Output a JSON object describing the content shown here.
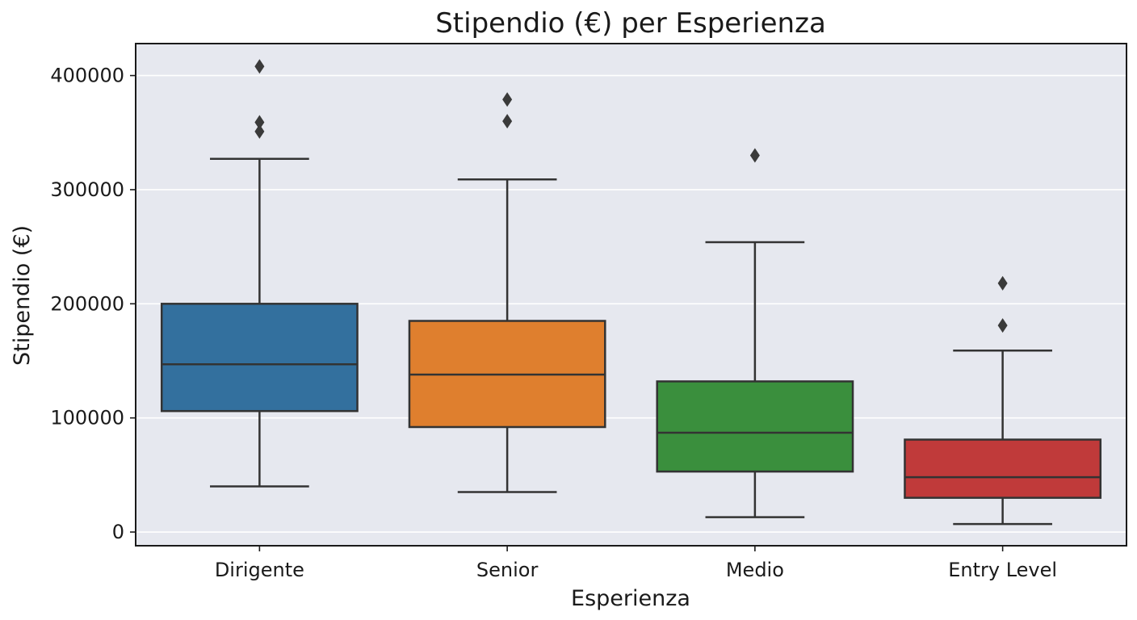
{
  "chart_data": {
    "type": "box",
    "title": "Stipendio (€) per Esperienza",
    "xlabel": "Esperienza",
    "ylabel": "Stipendio (€)",
    "ylim": [
      -12000,
      428000
    ],
    "yticks": [
      0,
      100000,
      200000,
      300000,
      400000
    ],
    "ytick_labels": [
      "0",
      "100000",
      "200000",
      "300000",
      "400000"
    ],
    "grid": true,
    "background_color": "#e6e8ef",
    "categories": [
      "Dirigente",
      "Senior",
      "Medio",
      "Entry Level"
    ],
    "boxes": [
      {
        "category": "Dirigente",
        "color": "#33709e",
        "whisker_low": 40000,
        "q1": 106000,
        "median": 147000,
        "q3": 200000,
        "whisker_high": 327000,
        "outliers": [
          351000,
          359000,
          408000
        ]
      },
      {
        "category": "Senior",
        "color": "#df7f2e",
        "whisker_low": 35000,
        "q1": 92000,
        "median": 138000,
        "q3": 185000,
        "whisker_high": 309000,
        "outliers": [
          360000,
          379000
        ]
      },
      {
        "category": "Medio",
        "color": "#3a8f3d",
        "whisker_low": 13000,
        "q1": 53000,
        "median": 87000,
        "q3": 132000,
        "whisker_high": 254000,
        "outliers": [
          330000
        ]
      },
      {
        "category": "Entry Level",
        "color": "#c03a3a",
        "whisker_low": 7000,
        "q1": 30000,
        "median": 48000,
        "q3": 81000,
        "whisker_high": 159000,
        "outliers": [
          181000,
          218000
        ]
      }
    ]
  }
}
